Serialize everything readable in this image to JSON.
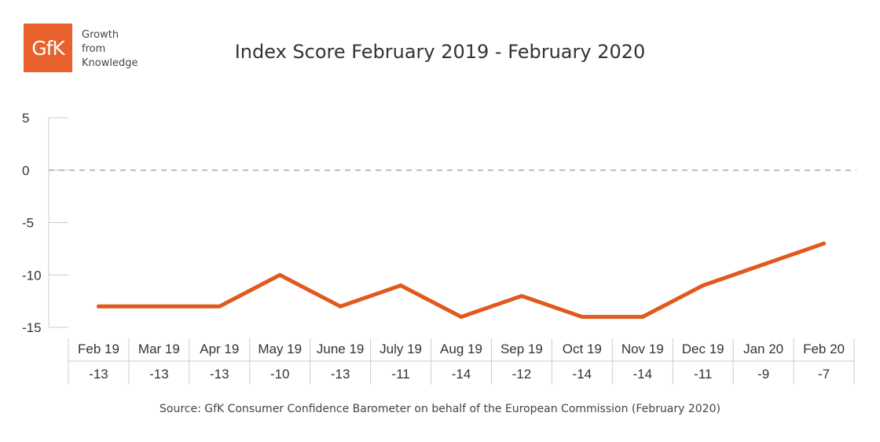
{
  "logo": {
    "mark": "GfK",
    "tagline": [
      "Growth",
      "from",
      "Knowledge"
    ],
    "color": "#e8602c"
  },
  "chart_data": {
    "type": "line",
    "title": "Index Score February 2019 - February 2020",
    "categories": [
      "Feb 19",
      "Mar 19",
      "Apr 19",
      "May 19",
      "June 19",
      "July 19",
      "Aug 19",
      "Sep 19",
      "Oct 19",
      "Nov 19",
      "Dec 19",
      "Jan 20",
      "Feb 20"
    ],
    "series": [
      {
        "values": [
          -13,
          -13,
          -13,
          -10,
          -13,
          -11,
          -14,
          -12,
          -14,
          -14,
          -11,
          -9,
          -7
        ],
        "color": "#e05a1e"
      }
    ],
    "table_values": [
      "-13",
      "-13",
      "-13",
      "-10",
      "-13",
      "-11",
      "-14",
      "-12",
      "-14",
      "-14",
      "-11",
      "-9",
      "-7"
    ],
    "yticks": [
      5,
      0,
      -5,
      -10,
      -15
    ],
    "ylim": [
      -15,
      5
    ],
    "reference_line": {
      "y": 0,
      "style": "dashed"
    },
    "grid": false,
    "xlabel": "",
    "ylabel": ""
  },
  "source": "Source: GfK Consumer Confidence Barometer on behalf of the European Commission (February 2020)"
}
